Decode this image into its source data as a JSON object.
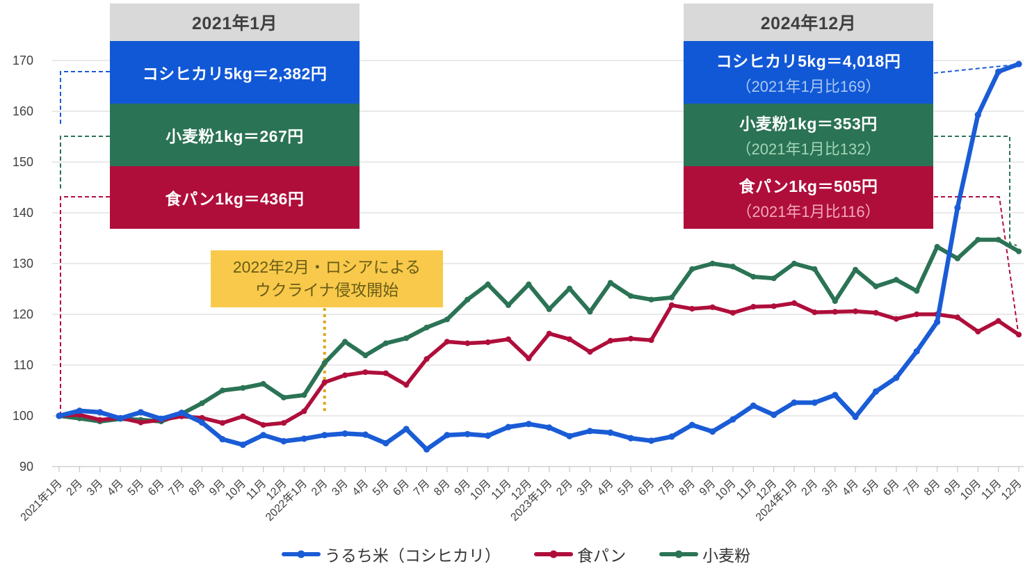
{
  "chart_data": {
    "type": "line",
    "title": "",
    "xlabel": "",
    "ylabel": "",
    "ylim": [
      90,
      170
    ],
    "yticks": [
      90,
      100,
      110,
      120,
      130,
      140,
      150,
      160,
      170
    ],
    "grid": true,
    "legend_position": "bottom",
    "x": [
      "2021年1月",
      "2月",
      "3月",
      "4月",
      "5月",
      "6月",
      "7月",
      "8月",
      "9月",
      "10月",
      "11月",
      "12月",
      "2022年1月",
      "2月",
      "3月",
      "4月",
      "5月",
      "6月",
      "7月",
      "8月",
      "9月",
      "10月",
      "11月",
      "12月",
      "2023年1月",
      "2月",
      "3月",
      "4月",
      "5月",
      "6月",
      "7月",
      "8月",
      "9月",
      "10月",
      "11月",
      "12月",
      "2024年1月",
      "2月",
      "3月",
      "4月",
      "5月",
      "6月",
      "7月",
      "8月",
      "9月",
      "10月",
      "11月",
      "12月"
    ],
    "series": [
      {
        "name": "うるち米（コシヒカリ）",
        "color": "#1a5cd6",
        "values": [
          100,
          101,
          100.7,
          99.5,
          100.7,
          99.4,
          100.6,
          98.7,
          95.4,
          94.3,
          96.2,
          95.0,
          95.5,
          96.2,
          96.5,
          96.3,
          94.6,
          97.4,
          93.4,
          96.2,
          96.4,
          96.1,
          97.8,
          98.4,
          97.7,
          96.0,
          97.0,
          96.7,
          95.6,
          95.1,
          95.9,
          98.2,
          96.9,
          99.3,
          102.0,
          100.2,
          102.6,
          102.6,
          104.1,
          99.8,
          104.8,
          107.5,
          112.7,
          118.5,
          141.0,
          159.3,
          167.8,
          169.3
        ]
      },
      {
        "name": "食パン",
        "color": "#af0e3b",
        "values": [
          100,
          100.2,
          99.2,
          99.6,
          98.7,
          99.2,
          99.9,
          99.6,
          98.6,
          99.9,
          98.2,
          98.6,
          100.9,
          106.6,
          108.0,
          108.6,
          108.4,
          106.1,
          111.2,
          114.6,
          114.3,
          114.5,
          115.1,
          111.3,
          116.2,
          115.1,
          112.6,
          114.8,
          115.2,
          114.9,
          121.8,
          121.1,
          121.4,
          120.3,
          121.5,
          121.6,
          122.2,
          120.4,
          120.5,
          120.6,
          120.3,
          119.1,
          120.0,
          120.0,
          119.4,
          116.6,
          118.7,
          116.0
        ]
      },
      {
        "name": "小麦粉",
        "color": "#2b7355",
        "values": [
          100,
          99.5,
          98.9,
          99.4,
          99.2,
          98.9,
          100.4,
          102.5,
          105.0,
          105.5,
          106.3,
          103.6,
          104.1,
          110.4,
          114.6,
          111.9,
          114.3,
          115.3,
          117.4,
          119.0,
          122.9,
          125.9,
          121.8,
          125.9,
          121.0,
          125.1,
          120.5,
          126.2,
          123.6,
          122.9,
          123.3,
          128.9,
          130.0,
          129.4,
          127.4,
          127.1,
          130.0,
          128.9,
          122.6,
          128.8,
          125.5,
          126.8,
          124.6,
          133.3,
          131.0,
          134.7,
          134.7,
          132.4
        ]
      }
    ],
    "event_line": {
      "x_label": "2022年2月",
      "x_index": 13,
      "color": "#dfa61c"
    }
  },
  "annotations": {
    "left_box": {
      "title": "2021年1月",
      "rows": [
        {
          "text": "コシヒカリ5kg＝2,382円",
          "color": "#1158d6"
        },
        {
          "text": "小麦粉1kg＝267円",
          "color": "#2b7355"
        },
        {
          "text": "食パン1kg＝436円",
          "color": "#af0e3b"
        }
      ]
    },
    "right_box": {
      "title": "2024年12月",
      "rows": [
        {
          "text": "コシヒカリ5kg＝4,018円",
          "sub": "（2021年1月比169）",
          "color": "#1158d6"
        },
        {
          "text": "小麦粉1kg＝353円",
          "sub": "（2021年1月比132）",
          "color": "#2b7355"
        },
        {
          "text": "食パン1kg＝505円",
          "sub": "（2021年1月比116）",
          "color": "#af0e3b"
        }
      ]
    },
    "event_box": {
      "line1": "2022年2月・ロシアによる",
      "line2": "ウクライナ侵攻開始",
      "bg": "#f8c94b",
      "text_color": "#6a5c15"
    }
  },
  "legend": {
    "items": [
      "うるち米（コシヒカリ）",
      "食パン",
      "小麦粉"
    ]
  },
  "colors": {
    "rice_blue": "#1a5cd6",
    "bread_red": "#af0e3b",
    "flour_green": "#2b7355",
    "header_gray": "#d9d9d9",
    "event_yellow": "#f8c94b",
    "grid_gray": "#dcdcdc",
    "axis_text": "#3f3f3f"
  }
}
